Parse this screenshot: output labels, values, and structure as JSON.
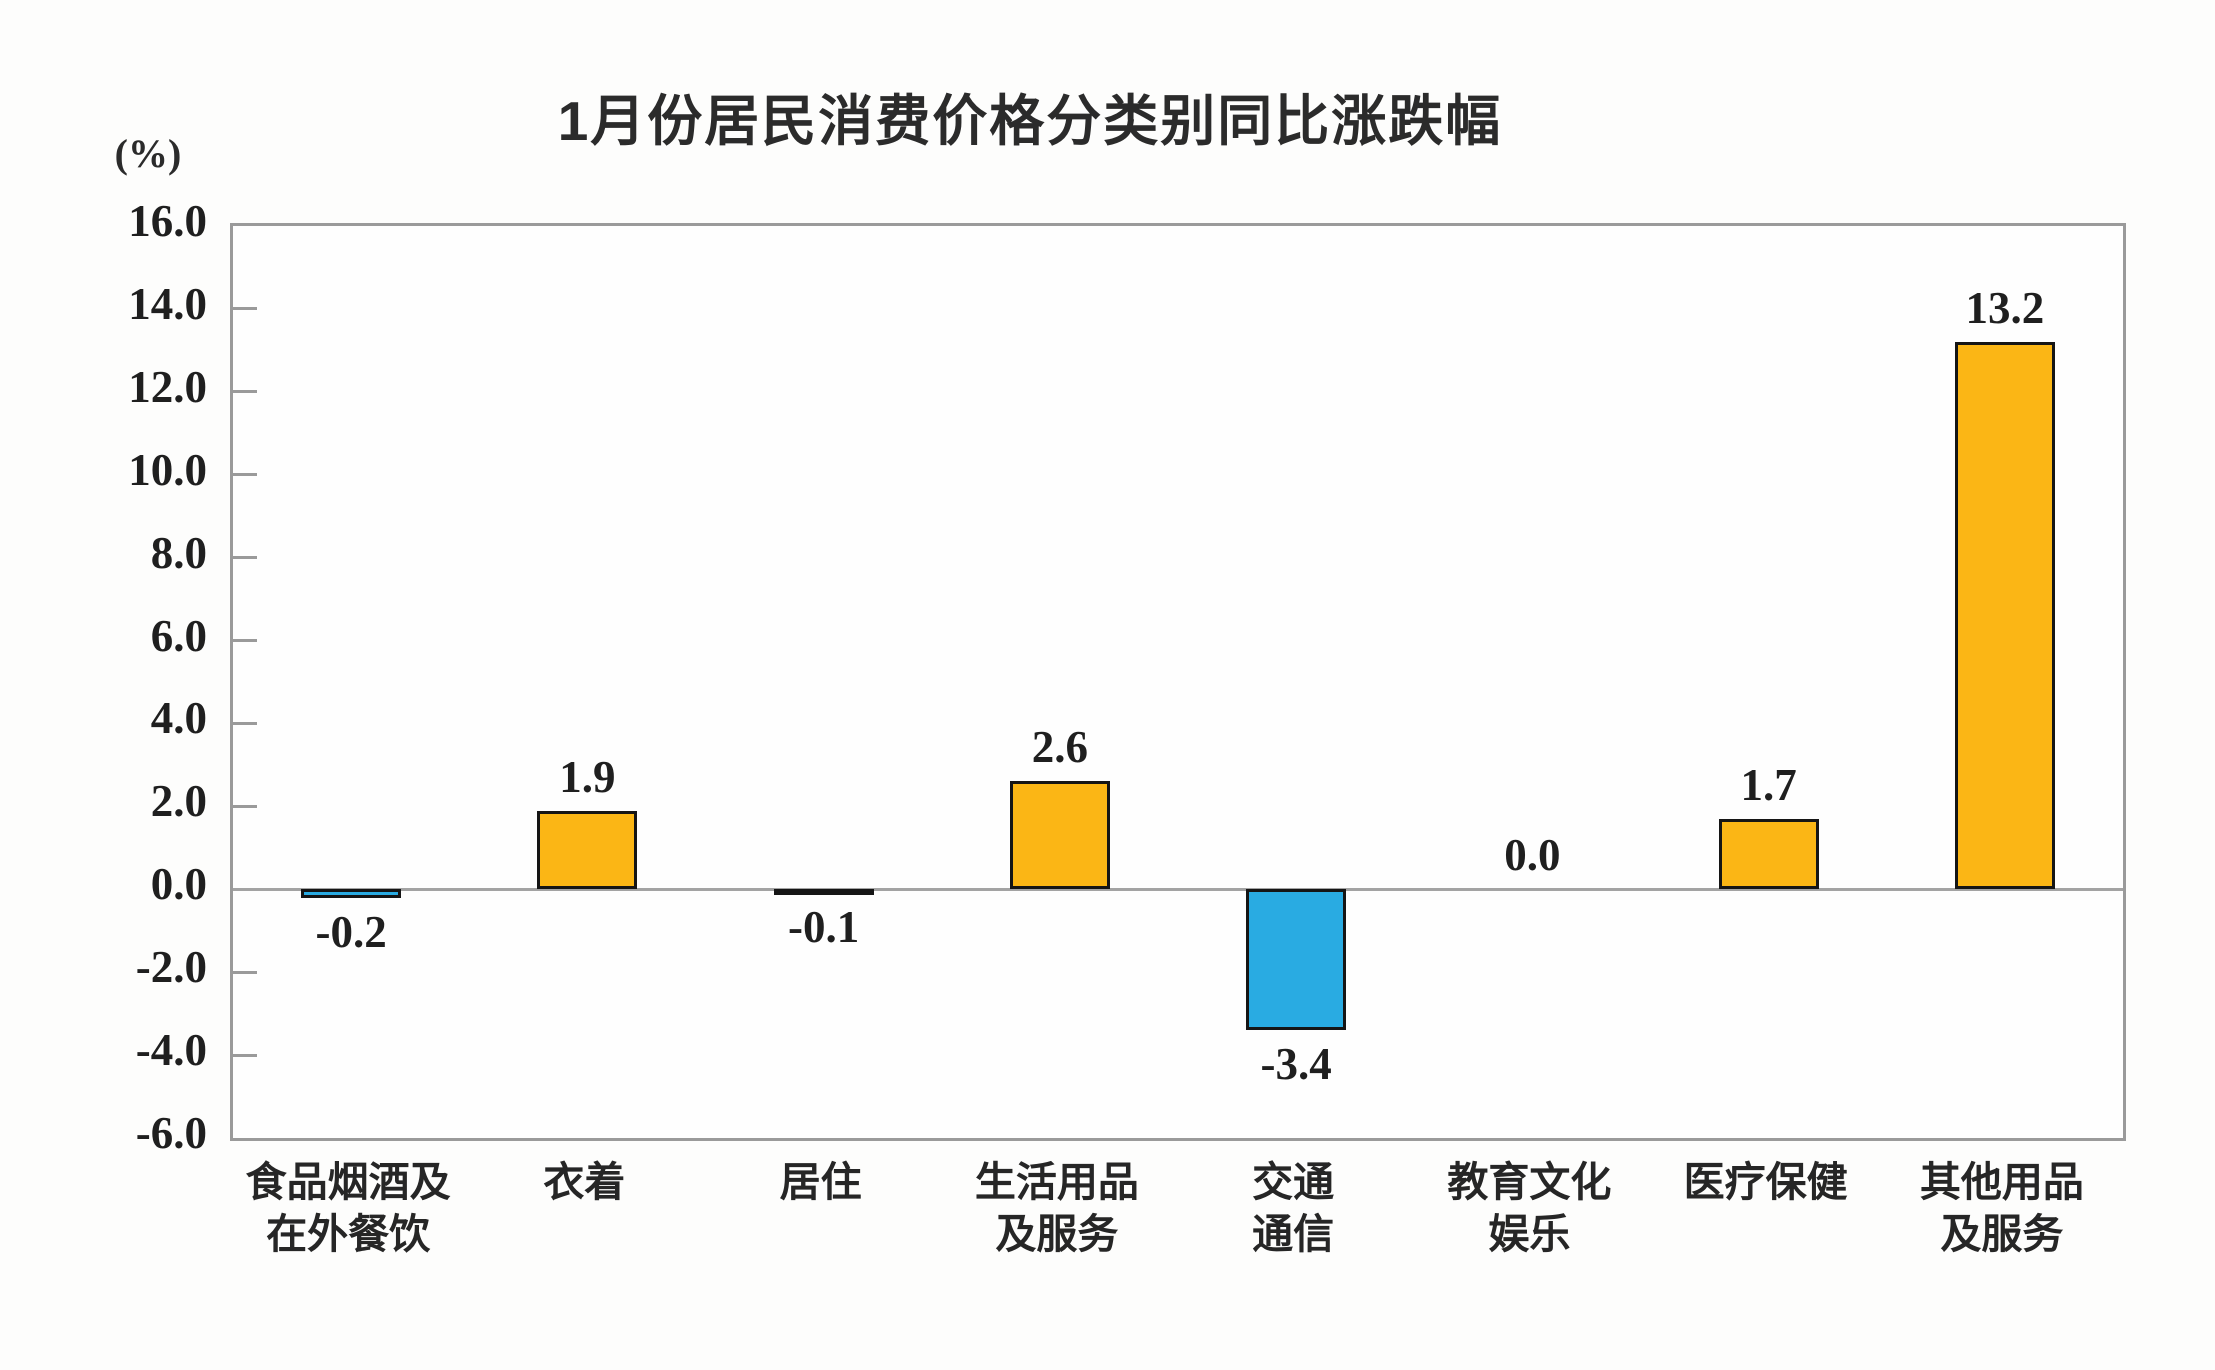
{
  "chart_data": {
    "type": "bar",
    "title": "1月份居民消费价格分类别同比涨跌幅",
    "unit_label": "(%)",
    "categories": [
      "食品烟酒及\n在外餐饮",
      "衣着",
      "居住",
      "生活用品\n及服务",
      "交通\n通信",
      "教育文化\n娱乐",
      "医疗保健",
      "其他用品\n及服务"
    ],
    "values": [
      -0.2,
      1.9,
      -0.1,
      2.6,
      -3.4,
      0.0,
      1.7,
      13.2
    ],
    "value_labels": [
      "-0.2",
      "1.9",
      "-0.1",
      "2.6",
      "-3.4",
      "0.0",
      "1.7",
      "13.2"
    ],
    "xlabel": "",
    "ylabel": "(%)",
    "ylim": [
      -6.0,
      16.0
    ],
    "ytick_step": 2.0,
    "ytick_labels": [
      "16.0",
      "14.0",
      "12.0",
      "10.0",
      "8.0",
      "6.0",
      "4.0",
      "2.0",
      "0.0",
      "-2.0",
      "-4.0",
      "-6.0"
    ],
    "grid": false,
    "legend_position": "none",
    "colors": {
      "positive_bar": "#FBB615",
      "negative_bar": "#29ABE2",
      "bar_border": "#151515",
      "axis": "#9a9a9a",
      "text": "#1f1f1f"
    }
  }
}
